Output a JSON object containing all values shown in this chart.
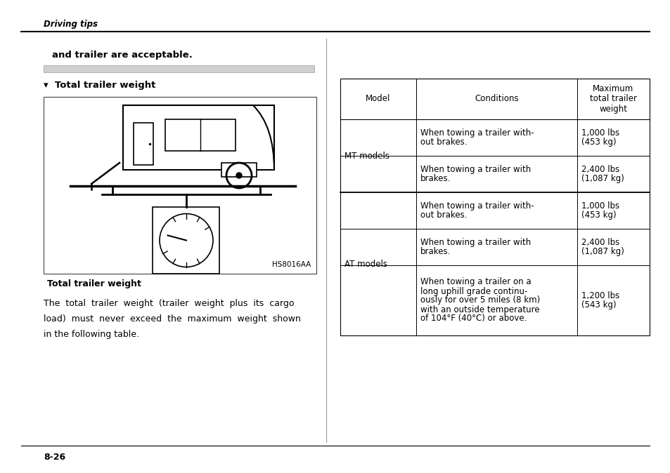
{
  "page_header": "Driving tips",
  "bold_text": "and trailer are acceptable.",
  "section_title": "▾  Total trailer weight",
  "image_label": "HS8016AA",
  "caption": "Total trailer weight",
  "body_line1": "The  total  trailer  weight  (trailer  weight  plus  its  cargo",
  "body_line2": "load)  must  never  exceed  the  maximum  weight  shown",
  "body_line3": "in the following table.",
  "footer_text": "8-26",
  "table_headers": [
    "Model",
    "Conditions",
    "Maximum\ntotal trailer\nweight"
  ],
  "table_rows": [
    [
      "MT models",
      "When towing a trailer with-\nout brakes.",
      "1,000 lbs\n(453 kg)"
    ],
    [
      "",
      "When towing a trailer with\nbrakes.",
      "2,400 lbs\n(1,087 kg)"
    ],
    [
      "AT models",
      "When towing a trailer with-\nout brakes.",
      "1,000 lbs\n(453 kg)"
    ],
    [
      "",
      "When towing a trailer with\nbrakes.",
      "2,400 lbs\n(1,087 kg)"
    ],
    [
      "",
      "When towing a trailer on a\nlong uphill grade continu-\nously for over 5 miles (8 km)\nwith an outside temperature\nof 104°F (40°C) or above.",
      "1,200 lbs\n(543 kg)"
    ]
  ],
  "background_color": "#ffffff",
  "text_color": "#000000"
}
